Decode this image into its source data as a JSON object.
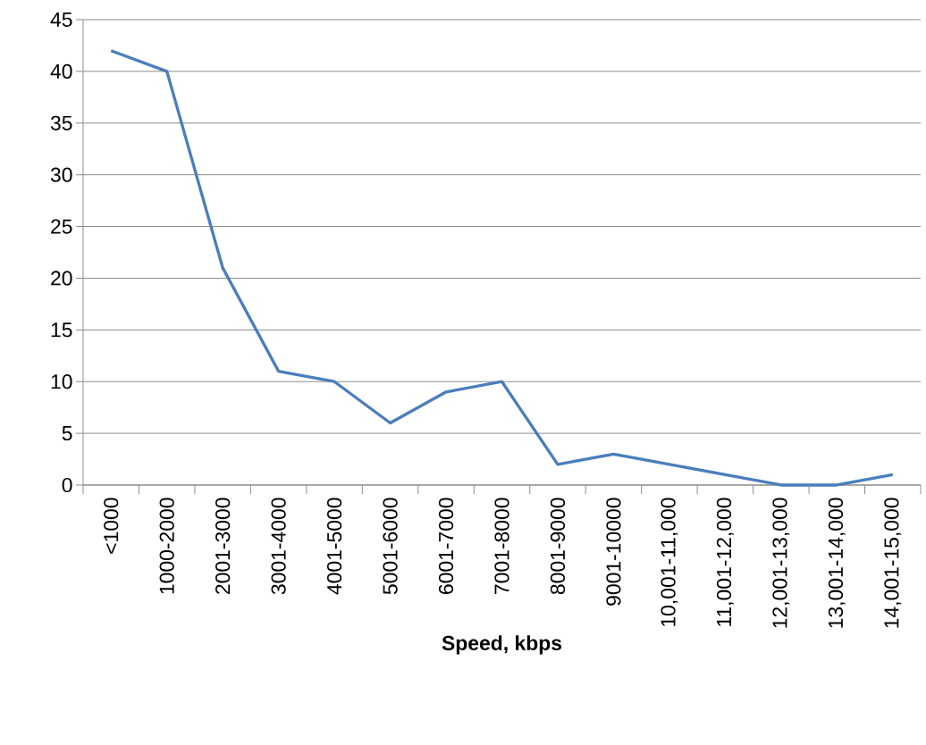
{
  "chart_data": {
    "type": "line",
    "xlabel": "Speed, kbps",
    "categories": [
      "<1000",
      "1000-2000",
      "2001-3000",
      "3001-4000",
      "4001-5000",
      "5001-6000",
      "6001-7000",
      "7001-8000",
      "8001-9000",
      "9001-10000",
      "10,001-11,000",
      "11,001-12,000",
      "12,001-13,000",
      "13,001-14,000",
      "14,001-15,000"
    ],
    "values": [
      42,
      40,
      21,
      11,
      10,
      6,
      9,
      10,
      2,
      3,
      2,
      1,
      0,
      0,
      1
    ],
    "color": "#4a7ebb",
    "ylim": [
      0,
      45
    ],
    "yticks": [
      0,
      5,
      10,
      15,
      20,
      25,
      30,
      35,
      40,
      45
    ],
    "grid": "y"
  }
}
